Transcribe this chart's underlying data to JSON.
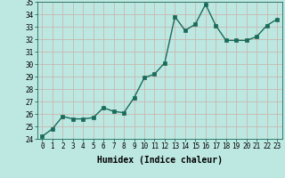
{
  "x": [
    0,
    1,
    2,
    3,
    4,
    5,
    6,
    7,
    8,
    9,
    10,
    11,
    12,
    13,
    14,
    15,
    16,
    17,
    18,
    19,
    20,
    21,
    22,
    23
  ],
  "y": [
    24.2,
    24.8,
    25.8,
    25.6,
    25.6,
    25.7,
    26.5,
    26.2,
    26.1,
    27.3,
    28.9,
    29.2,
    30.1,
    33.8,
    32.7,
    33.2,
    34.8,
    33.1,
    31.9,
    31.9,
    31.9,
    32.2,
    33.1,
    33.6
  ],
  "line_color": "#1a6b5a",
  "marker_color": "#1a6b5a",
  "bg_color": "#bde8e2",
  "grid_color": "#c8b8b0",
  "xlabel": "Humidex (Indice chaleur)",
  "ylim": [
    24,
    35
  ],
  "xlim": [
    -0.5,
    23.5
  ],
  "yticks": [
    24,
    25,
    26,
    27,
    28,
    29,
    30,
    31,
    32,
    33,
    34,
    35
  ],
  "xticks": [
    0,
    1,
    2,
    3,
    4,
    5,
    6,
    7,
    8,
    9,
    10,
    11,
    12,
    13,
    14,
    15,
    16,
    17,
    18,
    19,
    20,
    21,
    22,
    23
  ],
  "font_family": "monospace",
  "fontsize_axis": 5.5,
  "fontsize_label": 7,
  "linewidth": 1.0,
  "markersize": 2.5
}
